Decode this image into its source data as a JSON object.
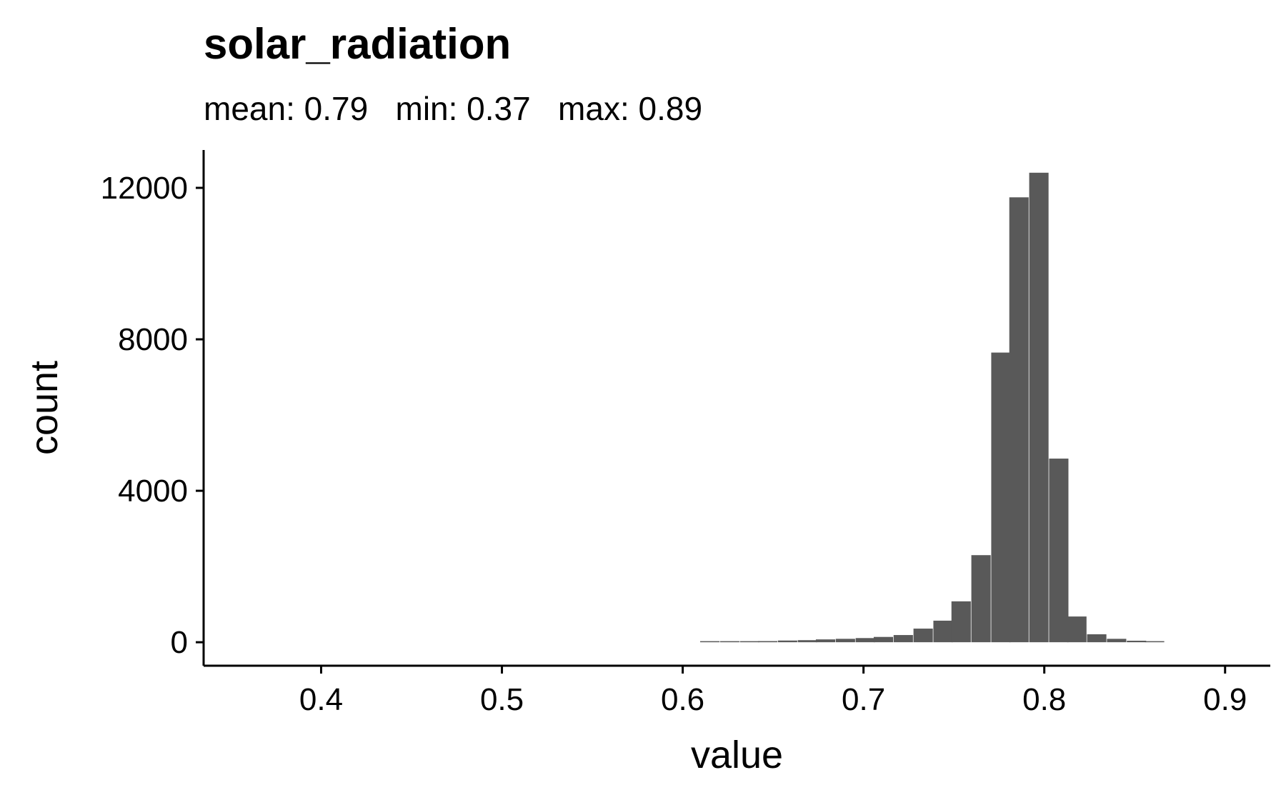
{
  "chart_data": {
    "type": "bar",
    "title": "solar_radiation",
    "subtitle": "mean: 0.79   min: 0.37   max: 0.89",
    "xlabel": "value",
    "ylabel": "count",
    "xlim": [
      0.335,
      0.925
    ],
    "ylim": [
      -620,
      13000
    ],
    "x_ticks": [
      0.4,
      0.5,
      0.6,
      0.7,
      0.8,
      0.9
    ],
    "x_tick_labels": [
      "0.4",
      "0.5",
      "0.6",
      "0.7",
      "0.8",
      "0.9"
    ],
    "y_ticks": [
      0,
      4000,
      8000,
      12000
    ],
    "y_tick_labels": [
      "0",
      "4000",
      "8000",
      "12000"
    ],
    "bin_width": 0.0107,
    "bins": [
      {
        "x": 0.615,
        "count": 20
      },
      {
        "x": 0.626,
        "count": 20
      },
      {
        "x": 0.637,
        "count": 25
      },
      {
        "x": 0.647,
        "count": 30
      },
      {
        "x": 0.658,
        "count": 45
      },
      {
        "x": 0.669,
        "count": 55
      },
      {
        "x": 0.679,
        "count": 75
      },
      {
        "x": 0.69,
        "count": 90
      },
      {
        "x": 0.701,
        "count": 110
      },
      {
        "x": 0.711,
        "count": 140
      },
      {
        "x": 0.722,
        "count": 190
      },
      {
        "x": 0.733,
        "count": 360
      },
      {
        "x": 0.744,
        "count": 570
      },
      {
        "x": 0.754,
        "count": 1080
      },
      {
        "x": 0.765,
        "count": 2300
      },
      {
        "x": 0.776,
        "count": 7650
      },
      {
        "x": 0.786,
        "count": 11750
      },
      {
        "x": 0.797,
        "count": 12400
      },
      {
        "x": 0.808,
        "count": 4850
      },
      {
        "x": 0.818,
        "count": 680
      },
      {
        "x": 0.829,
        "count": 210
      },
      {
        "x": 0.84,
        "count": 90
      },
      {
        "x": 0.851,
        "count": 40
      },
      {
        "x": 0.861,
        "count": 15
      }
    ],
    "bar_color": "#595959",
    "grid": false
  }
}
